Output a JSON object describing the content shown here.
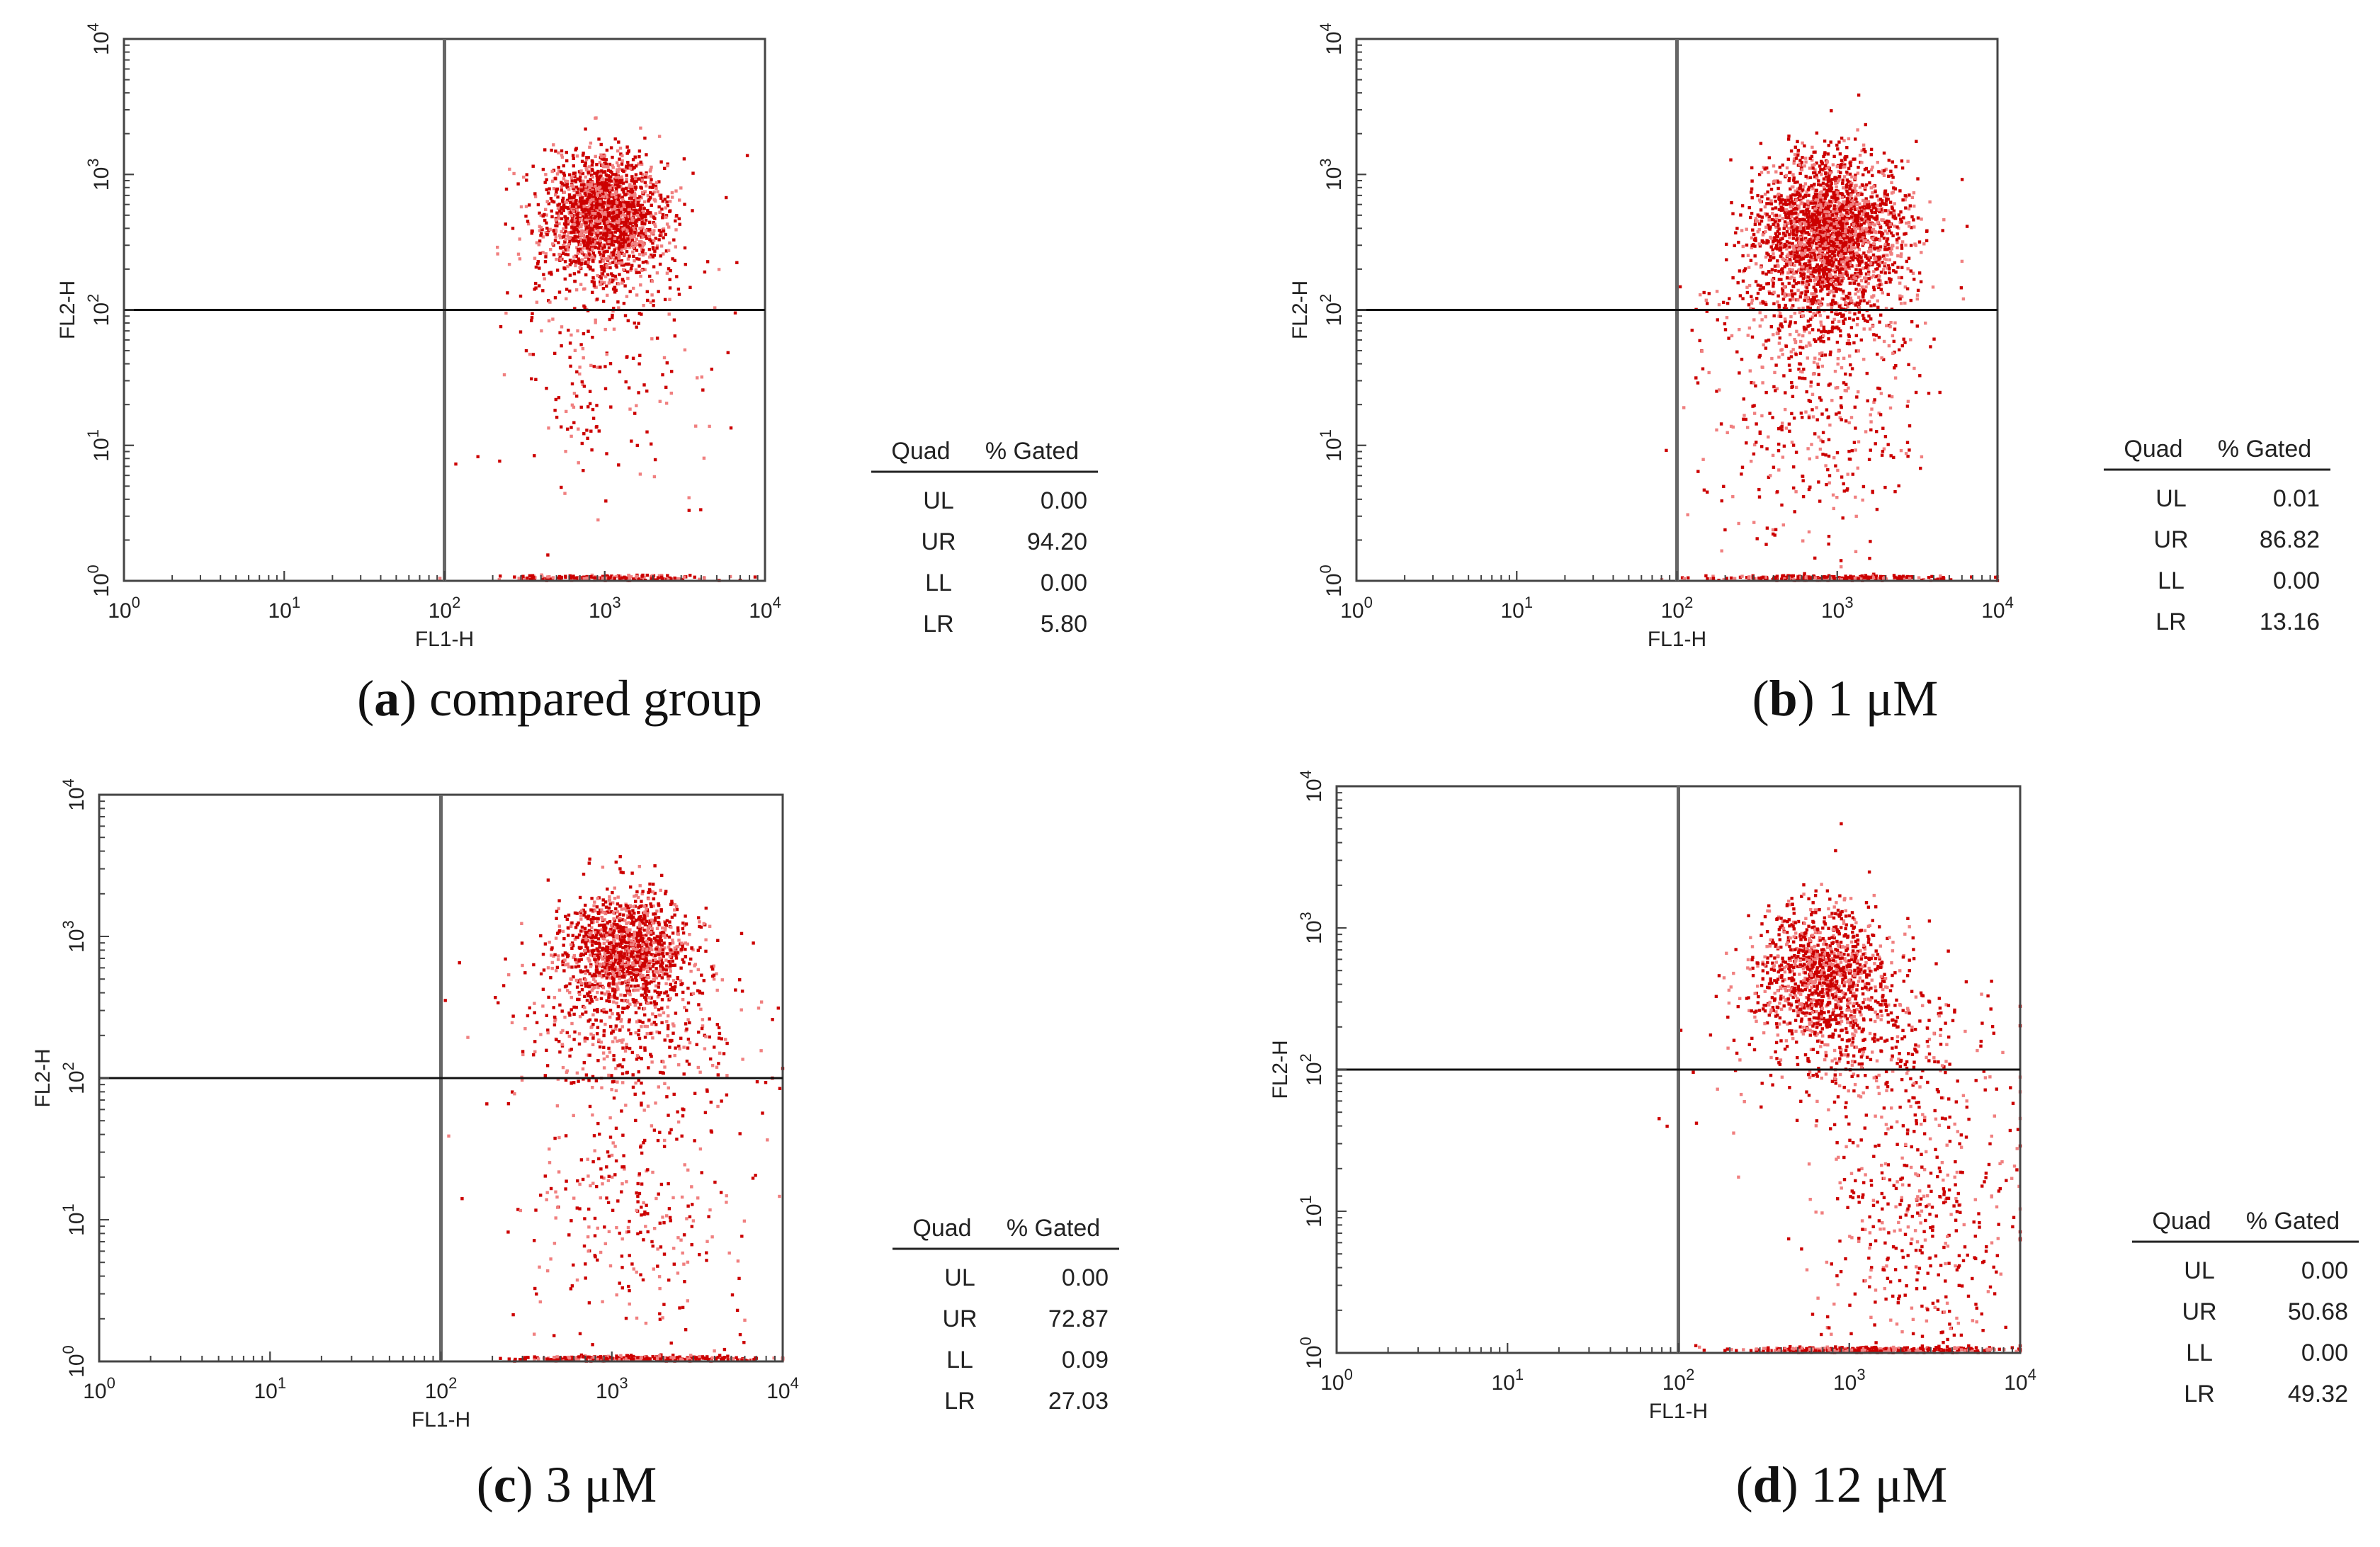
{
  "chart_data": [
    {
      "type": "scatter",
      "id": "a",
      "caption_letter": "a",
      "caption_text": "compared group",
      "xlabel": "FL1-H",
      "ylabel": "FL2-H",
      "xscale": "log",
      "yscale": "log",
      "xlim": [
        1,
        10000
      ],
      "ylim": [
        1,
        10000
      ],
      "tick_base": "10",
      "tick_exponents": [
        "0",
        "1",
        "2",
        "3",
        "4"
      ],
      "quadrant_gates": {
        "x": 100,
        "y": 100
      },
      "clusters": [
        {
          "x": 1000,
          "y": 500,
          "spread_x": 0.18,
          "spread_y": 0.22,
          "count": 1800
        },
        {
          "x": 900,
          "y": 200,
          "spread_x": 0.3,
          "spread_y": 0.35,
          "count": 220
        },
        {
          "x": 1000,
          "y": 30,
          "spread_x": 0.35,
          "spread_y": 0.6,
          "count": 140
        },
        {
          "x": 1000,
          "y": 1.05,
          "spread_x": 0.35,
          "spread_y": 0.01,
          "count": 180
        }
      ],
      "table": {
        "headers": [
          "Quad",
          "% Gated"
        ],
        "rows": [
          [
            "UL",
            "0.00"
          ],
          [
            "UR",
            "94.20"
          ],
          [
            "LL",
            "0.00"
          ],
          [
            "LR",
            "5.80"
          ]
        ]
      }
    },
    {
      "type": "scatter",
      "id": "b",
      "caption_letter": "b",
      "caption_text": "1 μM",
      "xlabel": "FL1-H",
      "ylabel": "FL2-H",
      "xscale": "log",
      "yscale": "log",
      "xlim": [
        1,
        10000
      ],
      "ylim": [
        1,
        10000
      ],
      "tick_base": "10",
      "tick_exponents": [
        "0",
        "1",
        "2",
        "3",
        "4"
      ],
      "quadrant_gates": {
        "x": 100,
        "y": 100
      },
      "clusters": [
        {
          "x": 900,
          "y": 400,
          "spread_x": 0.22,
          "spread_y": 0.26,
          "count": 2200
        },
        {
          "x": 800,
          "y": 120,
          "spread_x": 0.3,
          "spread_y": 0.3,
          "count": 500
        },
        {
          "x": 700,
          "y": 15,
          "spread_x": 0.35,
          "spread_y": 0.5,
          "count": 350
        },
        {
          "x": 1000,
          "y": 1.05,
          "spread_x": 0.4,
          "spread_y": 0.01,
          "count": 260
        }
      ],
      "table": {
        "headers": [
          "Quad",
          "% Gated"
        ],
        "rows": [
          [
            "UL",
            "0.01"
          ],
          [
            "UR",
            "86.82"
          ],
          [
            "LL",
            "0.00"
          ],
          [
            "LR",
            "13.16"
          ]
        ]
      }
    },
    {
      "type": "scatter",
      "id": "c",
      "caption_letter": "c",
      "caption_text": "3 μM",
      "xlabel": "FL1-H",
      "ylabel": "FL2-H",
      "xscale": "log",
      "yscale": "log",
      "xlim": [
        1,
        10000
      ],
      "ylim": [
        1,
        10000
      ],
      "tick_base": "10",
      "tick_exponents": [
        "0",
        "1",
        "2",
        "3",
        "4"
      ],
      "quadrant_gates": {
        "x": 100,
        "y": 100
      },
      "clusters": [
        {
          "x": 1200,
          "y": 800,
          "spread_x": 0.18,
          "spread_y": 0.2,
          "count": 1300
        },
        {
          "x": 1200,
          "y": 250,
          "spread_x": 0.35,
          "spread_y": 0.3,
          "count": 450
        },
        {
          "x": 1300,
          "y": 12,
          "spread_x": 0.35,
          "spread_y": 0.5,
          "count": 300
        },
        {
          "x": 1500,
          "y": 1.05,
          "spread_x": 0.35,
          "spread_y": 0.01,
          "count": 300
        }
      ],
      "table": {
        "headers": [
          "Quad",
          "% Gated"
        ],
        "rows": [
          [
            "UL",
            "0.00"
          ],
          [
            "UR",
            "72.87"
          ],
          [
            "LL",
            "0.09"
          ],
          [
            "LR",
            "27.03"
          ]
        ]
      }
    },
    {
      "type": "scatter",
      "id": "d",
      "caption_letter": "d",
      "caption_text": "12 μM",
      "xlabel": "FL1-H",
      "ylabel": "FL2-H",
      "xscale": "log",
      "yscale": "log",
      "xlim": [
        1,
        10000
      ],
      "ylim": [
        1,
        10000
      ],
      "tick_base": "10",
      "tick_exponents": [
        "0",
        "1",
        "2",
        "3",
        "4"
      ],
      "quadrant_gates": {
        "x": 100,
        "y": 100
      },
      "clusters": [
        {
          "x": 700,
          "y": 450,
          "spread_x": 0.2,
          "spread_y": 0.25,
          "count": 1100
        },
        {
          "x": 1200,
          "y": 150,
          "spread_x": 0.4,
          "spread_y": 0.35,
          "count": 450
        },
        {
          "x": 2500,
          "y": 8,
          "spread_x": 0.3,
          "spread_y": 0.5,
          "count": 420
        },
        {
          "x": 1500,
          "y": 1.05,
          "spread_x": 0.4,
          "spread_y": 0.01,
          "count": 400
        }
      ],
      "table": {
        "headers": [
          "Quad",
          "% Gated"
        ],
        "rows": [
          [
            "UL",
            "0.00"
          ],
          [
            "UR",
            "50.68"
          ],
          [
            "LL",
            "0.00"
          ],
          [
            "LR",
            "49.32"
          ]
        ]
      }
    }
  ],
  "colors": {
    "dot_dark": "#cc0000",
    "dot_light": "#f08080",
    "axis": "#444444",
    "gate_line": "#111111"
  }
}
